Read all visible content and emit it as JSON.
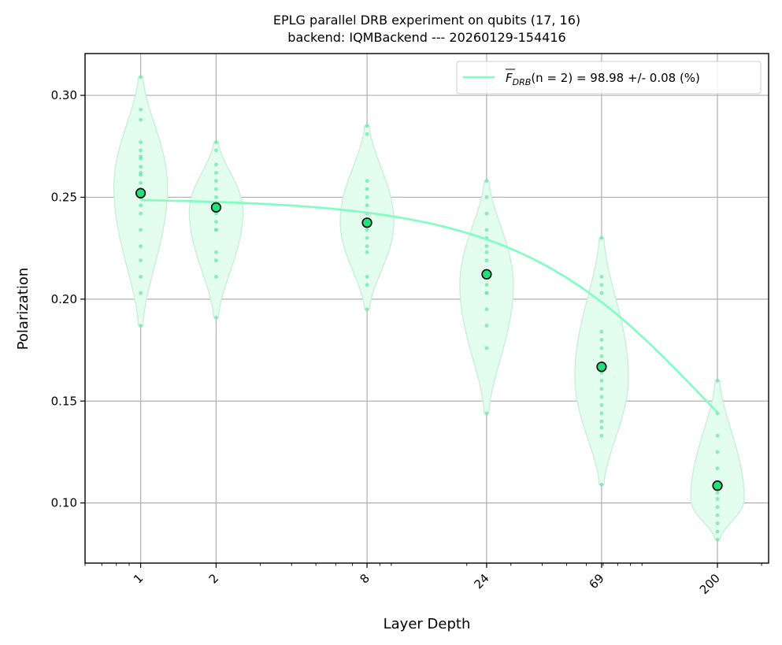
{
  "chart_data": {
    "type": "scatter",
    "title": "EPLG parallel DRB experiment on qubits (17, 16)",
    "subtitle": "backend: IQMBackend --- 20260129-154416",
    "xlabel": "Layer Depth",
    "ylabel": "Polarization",
    "x_scale": "log",
    "xlim": [
      0.6,
      320
    ],
    "ylim": [
      0.0705,
      0.3205
    ],
    "x_ticks": [
      1,
      2,
      8,
      24,
      69,
      200
    ],
    "x_tick_labels": [
      "1",
      "2",
      "8",
      "24",
      "69",
      "200"
    ],
    "y_ticks": [
      0.1,
      0.15,
      0.2,
      0.25,
      0.3
    ],
    "y_tick_labels": [
      "0.10",
      "0.15",
      "0.20",
      "0.25",
      "0.30"
    ],
    "grid": true,
    "legend_position": "top-right",
    "legend": {
      "label_prefix": "F",
      "label_sub": "DRB",
      "label_arg": "(n = 2) = 98.98 +/- 0.08 (%)"
    },
    "colors": {
      "fit_line": "#7fffbf",
      "violin_fill": "#e3fdef",
      "violin_edge": "#c7eed8",
      "sample_points": "#6fe3aa",
      "mean_marker": "#22e07a",
      "grid": "#b0b0b0"
    },
    "violins": [
      {
        "x": 1,
        "min": 0.187,
        "max": 0.309,
        "widest_at": 0.255,
        "samples": [
          0.309,
          0.293,
          0.288,
          0.277,
          0.273,
          0.27,
          0.269,
          0.265,
          0.262,
          0.261,
          0.257,
          0.254,
          0.25,
          0.246,
          0.242,
          0.234,
          0.226,
          0.219,
          0.211,
          0.203,
          0.187
        ]
      },
      {
        "x": 2,
        "min": 0.191,
        "max": 0.277,
        "widest_at": 0.243,
        "samples": [
          0.277,
          0.273,
          0.266,
          0.262,
          0.258,
          0.254,
          0.25,
          0.246,
          0.242,
          0.238,
          0.234,
          0.234,
          0.223,
          0.219,
          0.211,
          0.191
        ]
      },
      {
        "x": 8,
        "min": 0.195,
        "max": 0.285,
        "widest_at": 0.238,
        "samples": [
          0.285,
          0.281,
          0.258,
          0.254,
          0.25,
          0.246,
          0.242,
          0.238,
          0.234,
          0.23,
          0.226,
          0.223,
          0.211,
          0.207,
          0.195
        ]
      },
      {
        "x": 24,
        "min": 0.144,
        "max": 0.258,
        "widest_at": 0.207,
        "samples": [
          0.258,
          0.25,
          0.242,
          0.234,
          0.23,
          0.226,
          0.223,
          0.219,
          0.211,
          0.207,
          0.203,
          0.203,
          0.195,
          0.187,
          0.176,
          0.144
        ]
      },
      {
        "x": 69,
        "min": 0.109,
        "max": 0.23,
        "widest_at": 0.162,
        "samples": [
          0.23,
          0.211,
          0.207,
          0.203,
          0.184,
          0.18,
          0.176,
          0.172,
          0.168,
          0.164,
          0.16,
          0.156,
          0.152,
          0.148,
          0.144,
          0.14,
          0.137,
          0.133,
          0.109
        ]
      },
      {
        "x": 200,
        "min": 0.082,
        "max": 0.16,
        "widest_at": 0.102,
        "samples": [
          0.16,
          0.144,
          0.133,
          0.125,
          0.117,
          0.109,
          0.105,
          0.102,
          0.098,
          0.094,
          0.09,
          0.086,
          0.082
        ]
      }
    ],
    "means": [
      {
        "x": 1,
        "y": 0.252
      },
      {
        "x": 2,
        "y": 0.245
      },
      {
        "x": 8,
        "y": 0.2375
      },
      {
        "x": 24,
        "y": 0.2122
      },
      {
        "x": 69,
        "y": 0.1668
      },
      {
        "x": 200,
        "y": 0.1085
      }
    ],
    "fit": {
      "model": "A * p^m + B",
      "A": 0.15,
      "B": 0.0995,
      "p": 0.994,
      "x_start": 1,
      "x_end": 200
    }
  }
}
